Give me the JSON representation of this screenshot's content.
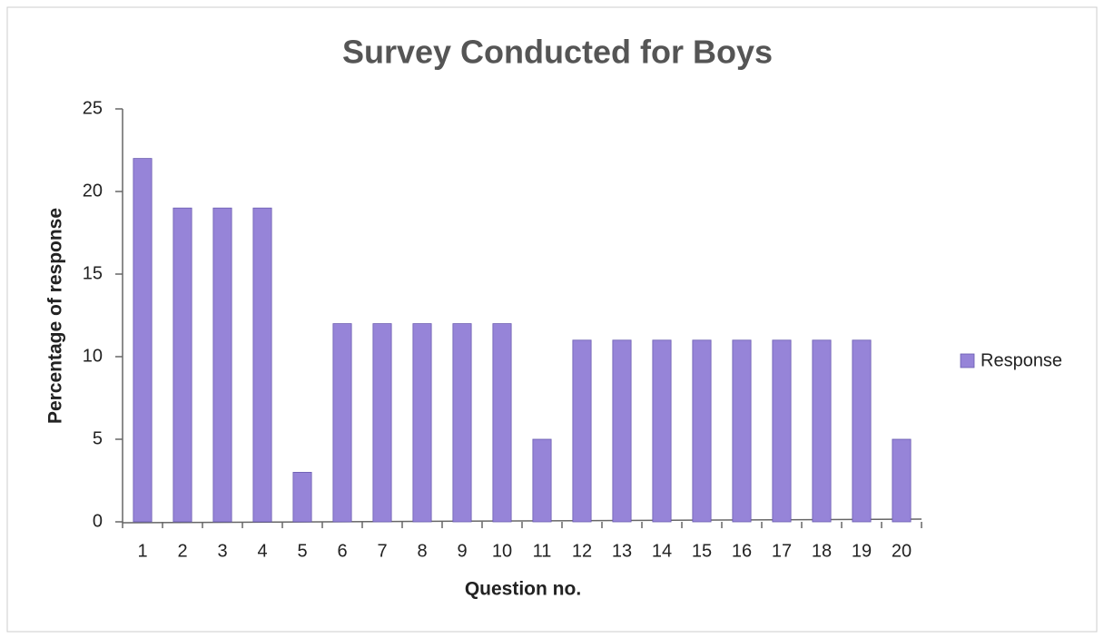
{
  "chart_data": {
    "type": "bar",
    "title": "Survey Conducted for Boys",
    "x_label": "Question no.",
    "y_label": "Percentage of response",
    "categories": [
      "1",
      "2",
      "3",
      "4",
      "5",
      "6",
      "7",
      "8",
      "9",
      "10",
      "11",
      "12",
      "13",
      "14",
      "15",
      "16",
      "17",
      "18",
      "19",
      "20"
    ],
    "series": [
      {
        "name": "Response",
        "color": "#9684d8",
        "values": [
          22,
          19,
          19,
          19,
          3,
          12,
          12,
          12,
          12,
          12,
          5,
          11,
          11,
          11,
          11,
          11,
          11,
          11,
          11,
          5
        ]
      }
    ],
    "ylim": [
      0,
      25
    ],
    "yticks": [
      0,
      5,
      10,
      15,
      20,
      25
    ],
    "grid": false,
    "legend": "right"
  }
}
